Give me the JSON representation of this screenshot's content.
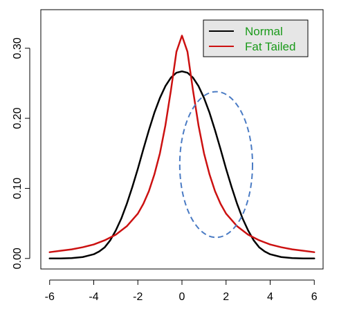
{
  "chart_data": {
    "type": "line",
    "title": "",
    "xlabel": "",
    "ylabel": "",
    "xlim": [
      -6.4,
      6.4
    ],
    "ylim": [
      -0.015,
      0.355
    ],
    "x_ticks": [
      -6,
      -4,
      -2,
      0,
      2,
      4,
      6
    ],
    "x_tick_labels": [
      "-6",
      "-4",
      "-2",
      "0",
      "2",
      "4",
      "6"
    ],
    "y_ticks": [
      0.0,
      0.1,
      0.2,
      0.3
    ],
    "y_tick_labels": [
      "0.00",
      "0.10",
      "0.20",
      "0.30"
    ],
    "grid": false,
    "legend_position": "top-right",
    "series": [
      {
        "name": "Normal",
        "color": "#000000",
        "x": [
          -6,
          -5.5,
          -5,
          -4.5,
          -4,
          -3.75,
          -3.5,
          -3.25,
          -3,
          -2.75,
          -2.5,
          -2.25,
          -2,
          -1.75,
          -1.5,
          -1.25,
          -1,
          -0.75,
          -0.5,
          -0.25,
          0,
          0.25,
          0.5,
          0.75,
          1,
          1.25,
          1.5,
          1.75,
          2,
          2.25,
          2.5,
          2.75,
          3,
          3.25,
          3.5,
          3.75,
          4,
          4.5,
          5,
          5.5,
          6
        ],
        "values": [
          0.0,
          0.0,
          0.0005,
          0.002,
          0.006,
          0.01,
          0.016,
          0.026,
          0.04,
          0.057,
          0.078,
          0.102,
          0.128,
          0.156,
          0.183,
          0.208,
          0.229,
          0.246,
          0.258,
          0.265,
          0.267,
          0.265,
          0.258,
          0.246,
          0.229,
          0.208,
          0.183,
          0.156,
          0.128,
          0.102,
          0.078,
          0.057,
          0.04,
          0.026,
          0.016,
          0.01,
          0.006,
          0.002,
          0.0005,
          0.0,
          0.0
        ]
      },
      {
        "name": "Fat Tailed",
        "color": "#cc1111",
        "x": [
          -6,
          -5.5,
          -5,
          -4.5,
          -4,
          -3.5,
          -3,
          -2.5,
          -2,
          -1.75,
          -1.5,
          -1.25,
          -1,
          -0.75,
          -0.5,
          -0.25,
          0,
          0.25,
          0.5,
          0.75,
          1,
          1.25,
          1.5,
          1.75,
          2,
          2.5,
          3,
          3.5,
          4,
          4.5,
          5,
          5.5,
          6
        ],
        "values": [
          0.009,
          0.011,
          0.013,
          0.016,
          0.02,
          0.026,
          0.034,
          0.046,
          0.064,
          0.078,
          0.096,
          0.12,
          0.15,
          0.19,
          0.24,
          0.295,
          0.318,
          0.295,
          0.24,
          0.19,
          0.15,
          0.12,
          0.096,
          0.078,
          0.064,
          0.046,
          0.034,
          0.026,
          0.02,
          0.016,
          0.013,
          0.011,
          0.009
        ]
      }
    ],
    "annotations": [
      {
        "shape": "ellipse",
        "style": "dashed",
        "color": "#4a7bc4",
        "center_x": 1.55,
        "center_y": 0.134,
        "radius_x": 1.65,
        "radius_y": 0.104
      }
    ],
    "colors": {
      "axis": "#000000",
      "legend_text": "#1a9a1a",
      "legend_bg": "#e6e6e6",
      "background": "#ffffff"
    }
  }
}
